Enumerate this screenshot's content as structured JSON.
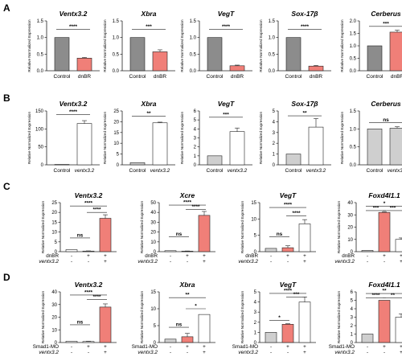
{
  "rows": [
    {
      "label": "A"
    },
    {
      "label": "B"
    },
    {
      "label": "C"
    },
    {
      "label": "D"
    }
  ],
  "colors": {
    "gray": "#8c8c8c",
    "light_gray": "#cfcfcf",
    "red": "#f07f78",
    "axis": "#222222"
  },
  "chart_data": [
    {
      "row": "A",
      "type": "bar",
      "title": "Ventx3.2",
      "ylabel": "Relative Normalized Expression",
      "ylim": [
        0,
        1.5
      ],
      "yticks": [
        "0.0",
        "0.5",
        "1.0",
        "1.5"
      ],
      "categories": [
        "Control",
        "dnBR"
      ],
      "values": [
        1.0,
        0.38
      ],
      "errors": [
        0,
        0.02
      ],
      "colors": [
        "#8c8c8c",
        "#f07f78"
      ],
      "significance": [
        {
          "from": 0,
          "to": 1,
          "label": "****",
          "level": 1.25
        }
      ]
    },
    {
      "row": "A",
      "type": "bar",
      "title": "Xbra",
      "ylabel": "Relative Normalized Expression",
      "ylim": [
        0,
        1.5
      ],
      "yticks": [
        "0.0",
        "0.5",
        "1.0",
        "1.5"
      ],
      "categories": [
        "Control",
        "dnBR"
      ],
      "values": [
        1.0,
        0.57
      ],
      "errors": [
        0,
        0.06
      ],
      "colors": [
        "#8c8c8c",
        "#f07f78"
      ],
      "significance": [
        {
          "from": 0,
          "to": 1,
          "label": "***",
          "level": 1.25
        }
      ]
    },
    {
      "row": "A",
      "type": "bar",
      "title": "VegT",
      "ylabel": "Relative Normalized Expression",
      "ylim": [
        0,
        1.5
      ],
      "yticks": [
        "0.0",
        "0.5",
        "1.0",
        "1.5"
      ],
      "categories": [
        "Control",
        "dnBR"
      ],
      "values": [
        1.0,
        0.15
      ],
      "errors": [
        0,
        0.02
      ],
      "colors": [
        "#8c8c8c",
        "#f07f78"
      ],
      "significance": [
        {
          "from": 0,
          "to": 1,
          "label": "****",
          "level": 1.25
        }
      ]
    },
    {
      "row": "A",
      "type": "bar",
      "title": "Sox-17β",
      "ylabel": "Relative Normalized Expression",
      "ylim": [
        0,
        1.5
      ],
      "yticks": [
        "0.0",
        "0.5",
        "1.0",
        "1.5"
      ],
      "categories": [
        "Control",
        "dnBR"
      ],
      "values": [
        1.0,
        0.14
      ],
      "errors": [
        0,
        0.02
      ],
      "colors": [
        "#8c8c8c",
        "#f07f78"
      ],
      "significance": [
        {
          "from": 0,
          "to": 1,
          "label": "****",
          "level": 1.25
        }
      ]
    },
    {
      "row": "A",
      "type": "bar",
      "title": "Cerberus",
      "ylabel": "Relative Normalized Expression",
      "ylim": [
        0,
        2.0
      ],
      "yticks": [
        "0.0",
        "0.5",
        "1.0",
        "1.5",
        "2.0"
      ],
      "categories": [
        "Control",
        "dnBR"
      ],
      "values": [
        1.0,
        1.55
      ],
      "errors": [
        0,
        0.08
      ],
      "colors": [
        "#8c8c8c",
        "#f07f78"
      ],
      "significance": [
        {
          "from": 0,
          "to": 1,
          "label": "***",
          "level": 1.78
        }
      ]
    },
    {
      "row": "B",
      "type": "bar",
      "title": "Ventx3.2",
      "ylabel": "Relative Normalized Expression",
      "ylim": [
        0,
        150
      ],
      "yticks": [
        "0",
        "50",
        "100",
        "150"
      ],
      "categories": [
        "Control",
        "ventx3.2"
      ],
      "values": [
        1,
        115
      ],
      "errors": [
        0,
        8
      ],
      "colors": [
        "#cfcfcf",
        "#ffffff"
      ],
      "significance": [
        {
          "from": 0,
          "to": 1,
          "label": "****",
          "level": 140
        }
      ]
    },
    {
      "row": "B",
      "type": "bar",
      "title": "Xbra",
      "ylabel": "Relative Normalized Expression",
      "ylim": [
        0,
        25
      ],
      "yticks": [
        "0",
        "5",
        "10",
        "15",
        "20",
        "25"
      ],
      "categories": [
        "Control",
        "ventx3.2"
      ],
      "values": [
        1,
        19.5
      ],
      "errors": [
        0,
        0.3
      ],
      "colors": [
        "#cfcfcf",
        "#ffffff"
      ],
      "significance": [
        {
          "from": 0,
          "to": 1,
          "label": "**",
          "level": 22.5
        }
      ]
    },
    {
      "row": "B",
      "type": "bar",
      "title": "VegT",
      "ylabel": "Relative Normalized Expression",
      "ylim": [
        0,
        6
      ],
      "yticks": [
        "0",
        "1",
        "2",
        "3",
        "4",
        "5",
        "6"
      ],
      "categories": [
        "Control",
        "ventx3.2"
      ],
      "values": [
        1,
        3.7
      ],
      "errors": [
        0,
        0.4
      ],
      "colors": [
        "#cfcfcf",
        "#ffffff"
      ],
      "significance": [
        {
          "from": 0,
          "to": 1,
          "label": "***",
          "level": 5.3
        }
      ]
    },
    {
      "row": "B",
      "type": "bar",
      "title": "Sox-17β",
      "ylabel": "Relative Normalized Expression",
      "ylim": [
        0,
        5
      ],
      "yticks": [
        "0",
        "1",
        "2",
        "3",
        "4",
        "5"
      ],
      "categories": [
        "Control",
        "ventx3.2"
      ],
      "values": [
        1,
        3.5
      ],
      "errors": [
        0,
        0.8
      ],
      "colors": [
        "#cfcfcf",
        "#ffffff"
      ],
      "significance": [
        {
          "from": 0,
          "to": 1,
          "label": "**",
          "level": 4.55
        }
      ]
    },
    {
      "row": "B",
      "type": "bar",
      "title": "Cerberus",
      "ylabel": "Relative Normalized Expression",
      "ylim": [
        0,
        1.5
      ],
      "yticks": [
        "0.0",
        "0.5",
        "1.0",
        "1.5"
      ],
      "categories": [
        "Control",
        "ventx3.2"
      ],
      "values": [
        1.0,
        1.02
      ],
      "errors": [
        0,
        0.04
      ],
      "colors": [
        "#cfcfcf",
        "#cfcfcf"
      ],
      "significance": [
        {
          "from": 0,
          "to": 1,
          "label": "ns",
          "level": 1.18
        }
      ]
    },
    {
      "row": "C",
      "type": "bar",
      "title": "Ventx3.2",
      "ylabel": "Relative Normalized Expression",
      "ylim": [
        0,
        25
      ],
      "yticks": [
        "0",
        "5",
        "10",
        "15",
        "20",
        "25"
      ],
      "conditions": [
        {
          "name": "dnBR",
          "marks": [
            "-",
            "+",
            "+"
          ]
        },
        {
          "name": "ventx3.2",
          "marks": [
            "-",
            "-",
            "+"
          ]
        }
      ],
      "values": [
        1,
        0.3,
        17
      ],
      "errors": [
        0,
        0.1,
        1.8
      ],
      "colors": [
        "#ffffff",
        "#ffffff",
        "#f07f78"
      ],
      "significance": [
        {
          "from": 0,
          "to": 1,
          "label": "ns",
          "level": 7
        },
        {
          "from": 1,
          "to": 2,
          "label": "****",
          "level": 20
        },
        {
          "from": 0,
          "to": 2,
          "label": "****",
          "level": 23.3
        }
      ]
    },
    {
      "row": "C",
      "type": "bar",
      "title": "Xcre",
      "ylabel": "Relative Normalized Expression",
      "ylim": [
        0,
        50
      ],
      "yticks": [
        "0",
        "10",
        "20",
        "30",
        "40",
        "50"
      ],
      "conditions": [
        {
          "name": "dnBR",
          "marks": [
            "-",
            "+",
            "+"
          ]
        },
        {
          "name": "ventx3.2",
          "marks": [
            "-",
            "-",
            "+"
          ]
        }
      ],
      "values": [
        1,
        0.5,
        37
      ],
      "errors": [
        0,
        0.2,
        4
      ],
      "colors": [
        "#ffffff",
        "#ffffff",
        "#f07f78"
      ],
      "significance": [
        {
          "from": 0,
          "to": 1,
          "label": "ns",
          "level": 15
        },
        {
          "from": 1,
          "to": 2,
          "label": "****",
          "level": 43
        },
        {
          "from": 0,
          "to": 2,
          "label": "****",
          "level": 47.5
        }
      ]
    },
    {
      "row": "C",
      "type": "bar",
      "title": "VegT",
      "ylabel": "Relative Normalized Expression",
      "ylim": [
        0,
        15
      ],
      "yticks": [
        "0",
        "5",
        "10",
        "15"
      ],
      "conditions": [
        {
          "name": "dnBR",
          "marks": [
            "-",
            "+",
            "+"
          ]
        },
        {
          "name": "ventx3.2",
          "marks": [
            "-",
            "-",
            "+"
          ]
        }
      ],
      "values": [
        1,
        1.2,
        8.5
      ],
      "errors": [
        0,
        0.6,
        1.3
      ],
      "colors": [
        "#cfcfcf",
        "#f07f78",
        "#ffffff"
      ],
      "significance": [
        {
          "from": 0,
          "to": 1,
          "label": "ns",
          "level": 4.5
        },
        {
          "from": 1,
          "to": 2,
          "label": "****",
          "level": 11
        },
        {
          "from": 0,
          "to": 2,
          "label": "****",
          "level": 13.5
        }
      ]
    },
    {
      "row": "C",
      "type": "bar",
      "title": "Foxd4l1.1",
      "ylabel": "Relative Normalized Expression",
      "ylim": [
        0,
        40
      ],
      "yticks": [
        "0",
        "10",
        "20",
        "30",
        "40"
      ],
      "conditions": [
        {
          "name": "dnBR",
          "marks": [
            "-",
            "+",
            "+"
          ]
        },
        {
          "name": "ventx3.2",
          "marks": [
            "-",
            "-",
            "+"
          ]
        }
      ],
      "values": [
        1,
        32,
        10
      ],
      "errors": [
        0,
        0.4,
        1.2
      ],
      "colors": [
        "#cfcfcf",
        "#f07f78",
        "#ffffff"
      ],
      "significance": [
        {
          "from": 0,
          "to": 1,
          "label": "***",
          "level": 33.5
        },
        {
          "from": 1,
          "to": 2,
          "label": "***",
          "level": 33.5
        },
        {
          "from": 0,
          "to": 2,
          "label": "*",
          "level": 37
        }
      ]
    },
    {
      "row": "D",
      "type": "bar",
      "title": "Ventx3.2",
      "ylabel": "Relative Normalized Expression",
      "ylim": [
        0,
        40
      ],
      "yticks": [
        "0",
        "10",
        "20",
        "30",
        "40"
      ],
      "conditions": [
        {
          "name": "Smad1-MO",
          "marks": [
            "-",
            "+",
            "+"
          ]
        },
        {
          "name": "ventx3.2",
          "marks": [
            "-",
            "-",
            "+"
          ]
        }
      ],
      "values": [
        1,
        0.8,
        28
      ],
      "errors": [
        0,
        0.2,
        2.5
      ],
      "colors": [
        "#ffffff",
        "#ffffff",
        "#f07f78"
      ],
      "significance": [
        {
          "from": 0,
          "to": 1,
          "label": "ns",
          "level": 14
        },
        {
          "from": 1,
          "to": 2,
          "label": "****",
          "level": 34
        },
        {
          "from": 0,
          "to": 2,
          "label": "****",
          "level": 37.5
        }
      ]
    },
    {
      "row": "D",
      "type": "bar",
      "title": "Xbra",
      "ylabel": "Relative Normalized Expression",
      "ylim": [
        0,
        15
      ],
      "yticks": [
        "0",
        "5",
        "10",
        "15"
      ],
      "conditions": [
        {
          "name": "Smad1-MO",
          "marks": [
            "-",
            "+",
            "+"
          ]
        },
        {
          "name": "ventx3.2",
          "marks": [
            "-",
            "-",
            "+"
          ]
        }
      ],
      "values": [
        1,
        1.7,
        8.3
      ],
      "errors": [
        0,
        1,
        0
      ],
      "colors": [
        "#cfcfcf",
        "#f07f78",
        "#ffffff"
      ],
      "significance": [
        {
          "from": 0,
          "to": 1,
          "label": "ns",
          "level": 4.5
        },
        {
          "from": 1,
          "to": 2,
          "label": "*",
          "level": 10
        },
        {
          "from": 0,
          "to": 2,
          "label": "**",
          "level": 13.3
        }
      ]
    },
    {
      "row": "D",
      "type": "bar",
      "title": "VegT",
      "ylabel": "Relative Normalized Expression",
      "ylim": [
        0,
        5
      ],
      "yticks": [
        "0",
        "1",
        "2",
        "3",
        "4",
        "5"
      ],
      "conditions": [
        {
          "name": "Smad1-MO",
          "marks": [
            "-",
            "+",
            "+"
          ]
        },
        {
          "name": "ventx3.2",
          "marks": [
            "-",
            "-",
            "+"
          ]
        }
      ],
      "values": [
        1,
        1.8,
        4
      ],
      "errors": [
        0,
        0.05,
        0.5
      ],
      "colors": [
        "#cfcfcf",
        "#f07f78",
        "#ffffff"
      ],
      "significance": [
        {
          "from": 0,
          "to": 1,
          "label": "*",
          "level": 2.2
        },
        {
          "from": 1,
          "to": 2,
          "label": "***",
          "level": 4.5
        },
        {
          "from": 0,
          "to": 2,
          "label": "****",
          "level": 4.85
        }
      ]
    },
    {
      "row": "D",
      "type": "bar",
      "title": "Foxd4l1.1",
      "ylabel": "Relative Normalized Expression",
      "ylim": [
        0,
        6
      ],
      "yticks": [
        "0",
        "1",
        "2",
        "3",
        "4",
        "5",
        "6"
      ],
      "conditions": [
        {
          "name": "Smad1-MO",
          "marks": [
            "-",
            "+",
            "+"
          ]
        },
        {
          "name": "ventx3.2",
          "marks": [
            "-",
            "-",
            "+"
          ]
        }
      ],
      "values": [
        1,
        5,
        3
      ],
      "errors": [
        0,
        0,
        0.4
      ],
      "colors": [
        "#cfcfcf",
        "#f07f78",
        "#ffffff"
      ],
      "significance": [
        {
          "from": 0,
          "to": 1,
          "label": "****",
          "level": 5.3
        },
        {
          "from": 1,
          "to": 2,
          "label": "**",
          "level": 5.3
        },
        {
          "from": 0,
          "to": 2,
          "label": "**",
          "level": 5.8
        }
      ]
    }
  ]
}
